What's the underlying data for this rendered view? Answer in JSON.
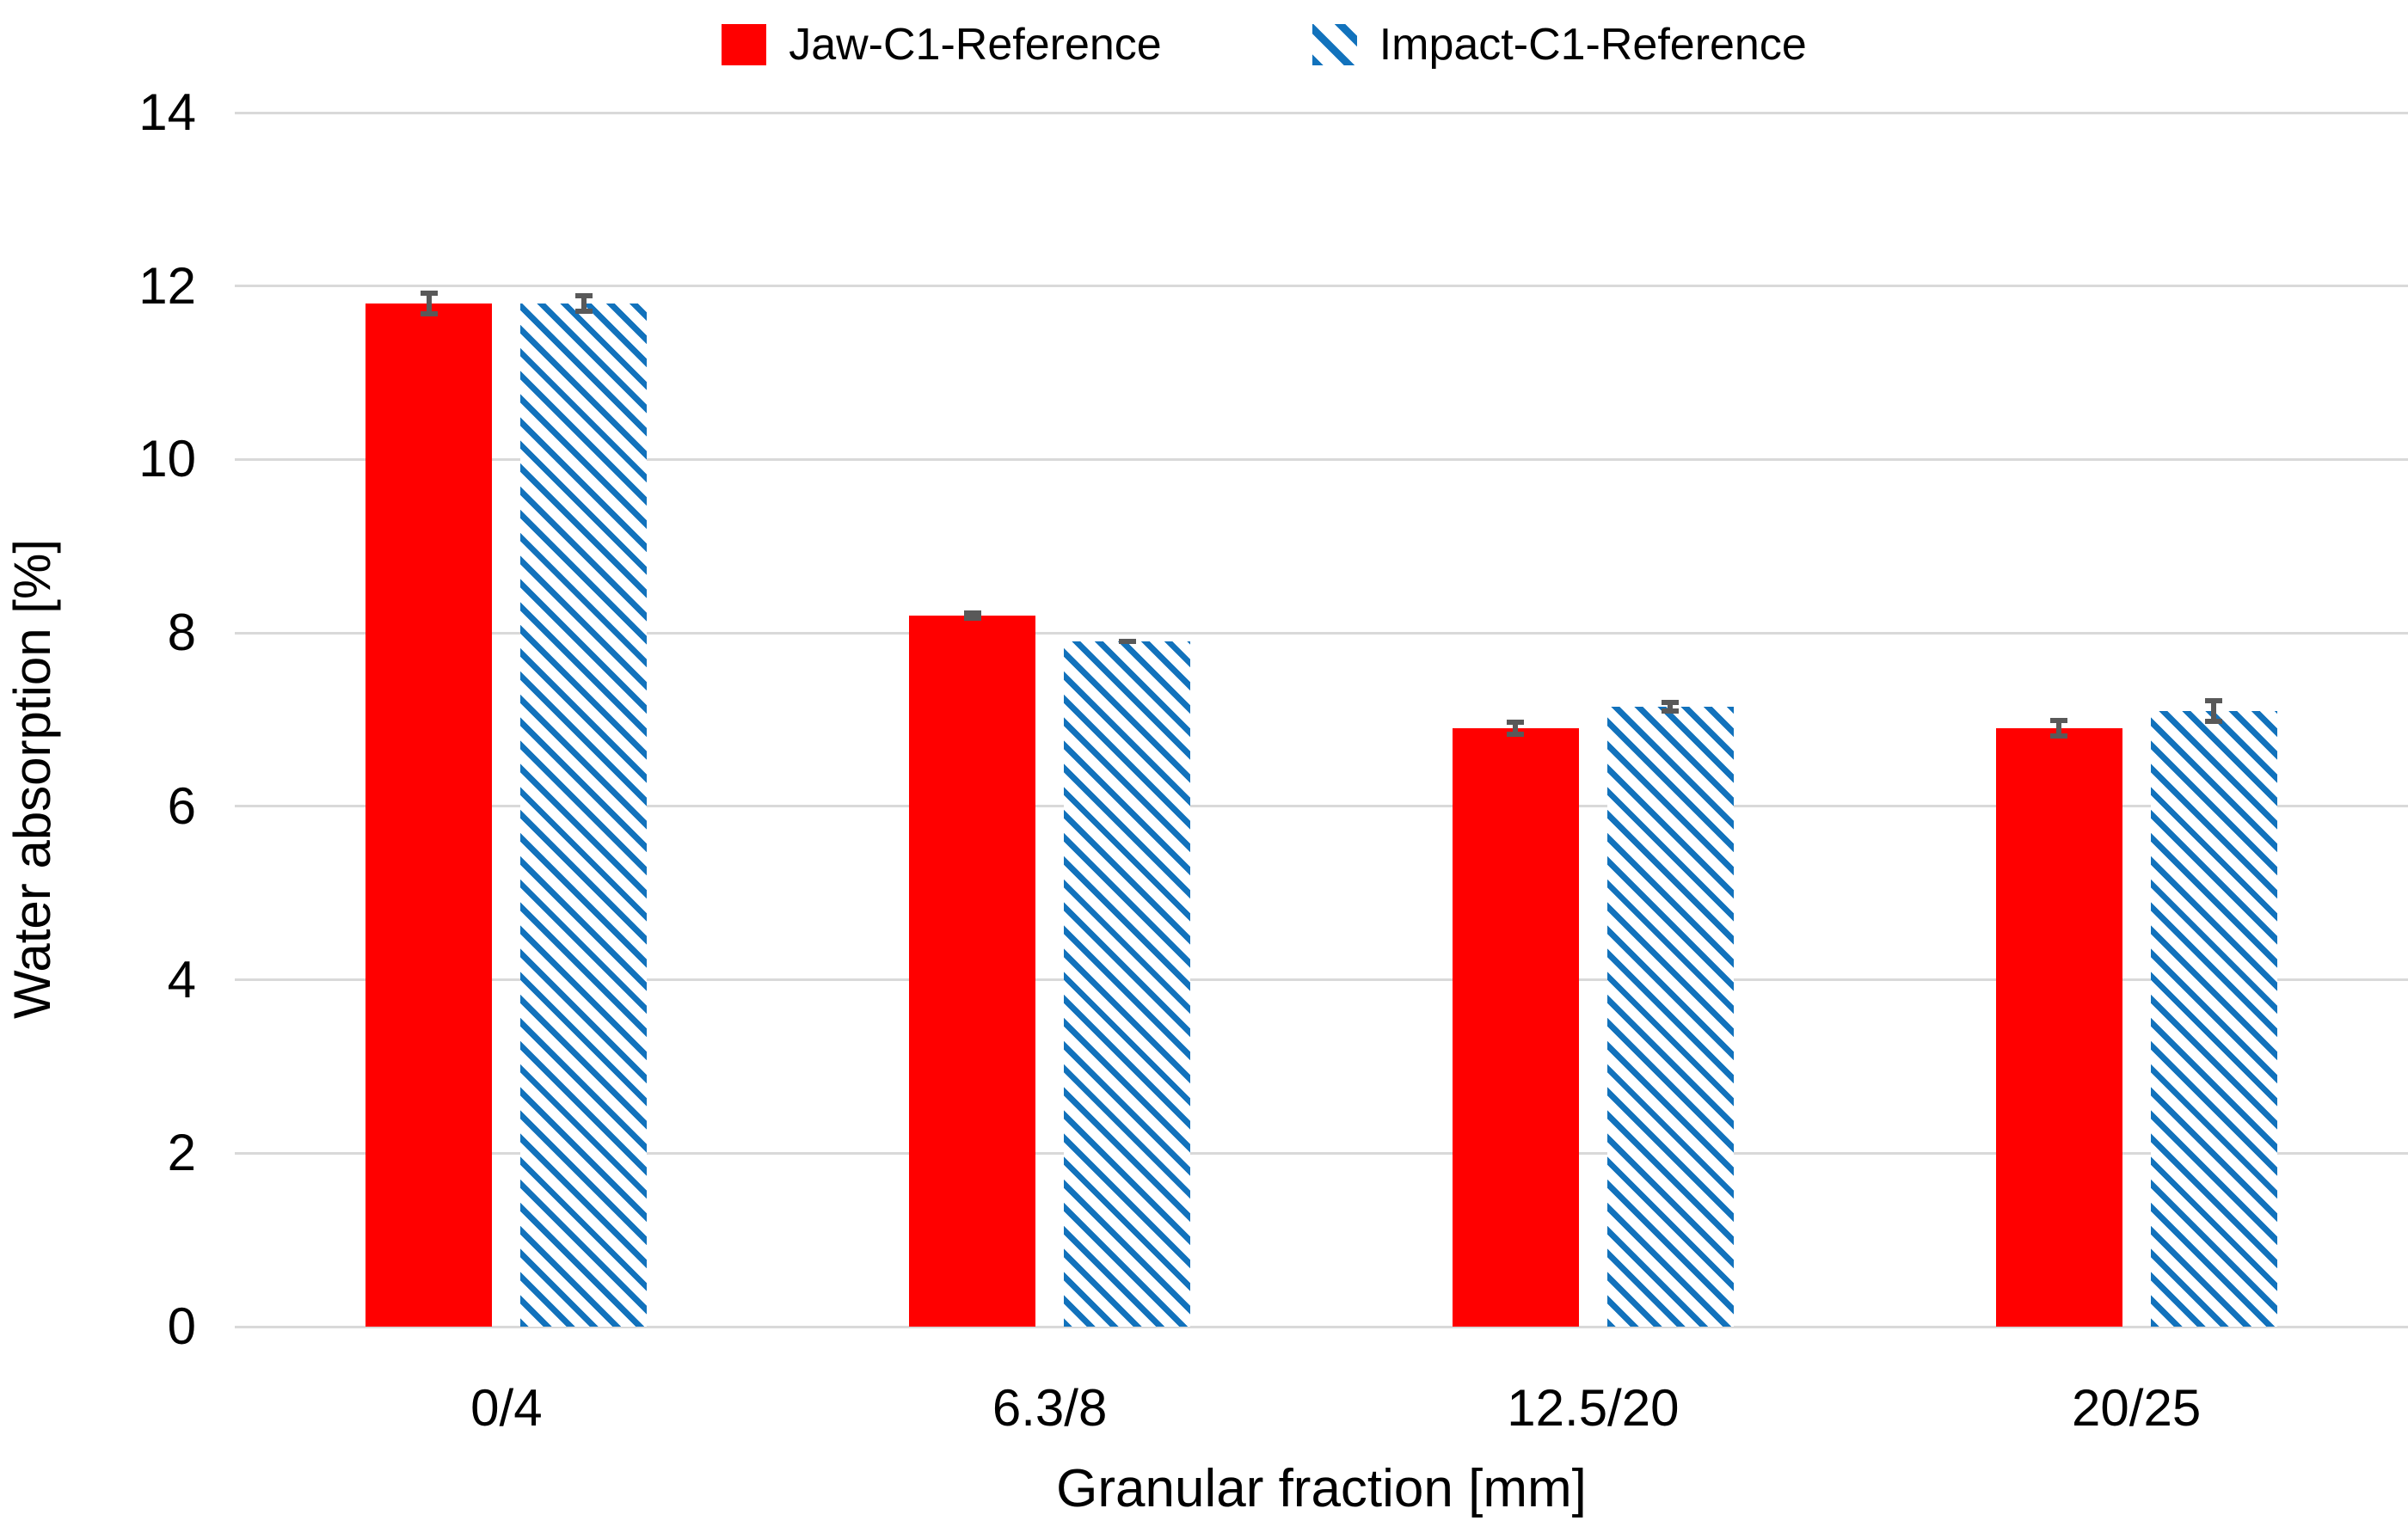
{
  "chart_data": {
    "type": "bar",
    "categories": [
      "0/4",
      "6.3/8",
      "12.5/20",
      "20/25"
    ],
    "series": [
      {
        "name": "Jaw-C1-Reference",
        "fill": "solid",
        "color": "#FF0000",
        "values": [
          11.8,
          8.2,
          6.9,
          6.9
        ],
        "error_bars": [
          0.15,
          0.06,
          0.1,
          0.12
        ]
      },
      {
        "name": "Impact-C1-Reference",
        "fill": "diagonal-hatch",
        "color": "#1272BC",
        "values": [
          11.8,
          7.9,
          7.15,
          7.1
        ],
        "error_bars": [
          0.12,
          0.03,
          0.08,
          0.15
        ]
      }
    ],
    "xlabel": "Granular fraction [mm]",
    "ylabel": "Water absorption [%]",
    "ylim": [
      0,
      14
    ],
    "yticks": [
      0,
      2,
      4,
      6,
      8,
      10,
      12,
      14
    ],
    "grid": true,
    "legend_position": "top",
    "gridline_color": "#D9D9D9",
    "error_bar_color": "#595959",
    "background_color": "#FFFFFF",
    "text_color": "#000000"
  }
}
